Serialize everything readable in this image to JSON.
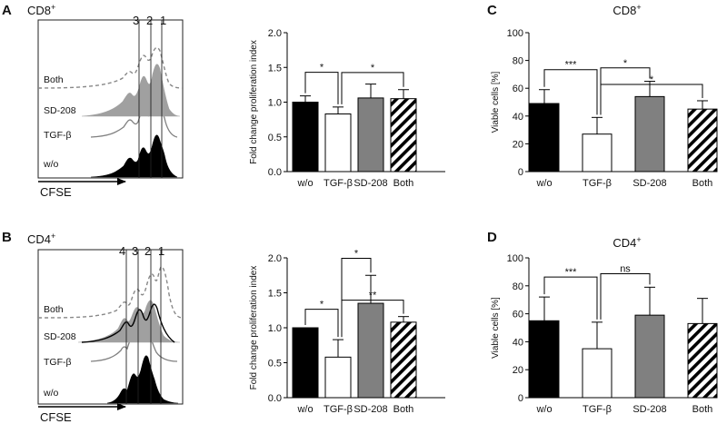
{
  "colors": {
    "black": "#000000",
    "white": "#ffffff",
    "gray": "#808080",
    "hist_gray": "#a0a0a0",
    "line_gray": "#888888"
  },
  "panels": {
    "A": {
      "label": "A",
      "title": "CD8",
      "title_sup": "+",
      "peak_labels": [
        "3",
        "2",
        "1"
      ],
      "row_labels": [
        "Both",
        "SD-208",
        "TGF-β",
        "w/o"
      ],
      "axis_label": "CFSE"
    },
    "B": {
      "label": "B",
      "title": "CD4",
      "title_sup": "+",
      "peak_labels": [
        "4",
        "3",
        "2",
        "1"
      ],
      "row_labels": [
        "Both",
        "SD-208",
        "TGF-β",
        "w/o"
      ],
      "axis_label": "CFSE"
    },
    "C": {
      "label": "C",
      "title": "CD8",
      "title_sup": "+"
    },
    "D": {
      "label": "D",
      "title": "CD4",
      "title_sup": "+"
    }
  },
  "chart_data": [
    {
      "id": "A-bar",
      "type": "bar",
      "title": "",
      "ylabel": "Fold change proliferation index",
      "categories": [
        "w/o",
        "TGF-β",
        "SD-208",
        "Both"
      ],
      "values": [
        1.0,
        0.83,
        1.06,
        1.05
      ],
      "errors": [
        0.09,
        0.1,
        0.2,
        0.13
      ],
      "styles": [
        "black",
        "white",
        "gray",
        "hatch"
      ],
      "ylim": [
        0,
        2.0
      ],
      "yticks": [
        "0.0",
        "0.5",
        "1.0",
        "1.5",
        "2.0"
      ],
      "significance": [
        {
          "from": 0,
          "to": 1,
          "label": "*"
        },
        {
          "from": 1,
          "to": 3,
          "label": "*"
        }
      ]
    },
    {
      "id": "B-bar",
      "type": "bar",
      "title": "",
      "ylabel": "Fold change proliferation index",
      "categories": [
        "w/o",
        "TGF-β",
        "SD-208",
        "Both"
      ],
      "values": [
        1.0,
        0.58,
        1.35,
        1.08
      ],
      "errors": [
        0.0,
        0.25,
        0.4,
        0.08
      ],
      "styles": [
        "black",
        "white",
        "gray",
        "hatch"
      ],
      "ylim": [
        0,
        2.0
      ],
      "yticks": [
        "0.0",
        "0.5",
        "1.0",
        "1.5",
        "2.0"
      ],
      "significance": [
        {
          "from": 0,
          "to": 1,
          "label": "*"
        },
        {
          "from": 1,
          "to": 2,
          "label": "*"
        },
        {
          "from": 1,
          "to": 3,
          "label": "**"
        }
      ]
    },
    {
      "id": "C-bar",
      "type": "bar",
      "title": "CD8+",
      "ylabel": "Viable cells [%]",
      "categories": [
        "w/o",
        "TGF-β",
        "SD-208",
        "Both"
      ],
      "values": [
        49,
        27,
        54,
        45
      ],
      "errors": [
        10,
        12,
        11,
        6
      ],
      "styles": [
        "black",
        "white",
        "gray",
        "hatch"
      ],
      "ylim": [
        0,
        100
      ],
      "yticks": [
        "0",
        "20",
        "40",
        "60",
        "80",
        "100"
      ],
      "significance": [
        {
          "from": 0,
          "to": 1,
          "label": "***"
        },
        {
          "from": 1,
          "to": 2,
          "label": "*"
        },
        {
          "from": 1,
          "to": 3,
          "label": "*"
        }
      ]
    },
    {
      "id": "D-bar",
      "type": "bar",
      "title": "CD4+",
      "ylabel": "Viable cells [%]",
      "categories": [
        "w/o",
        "TGF-β",
        "SD-208",
        "Both"
      ],
      "values": [
        55,
        35,
        59,
        53
      ],
      "errors": [
        17,
        19,
        20,
        18
      ],
      "styles": [
        "black",
        "white",
        "gray",
        "hatch"
      ],
      "ylim": [
        0,
        100
      ],
      "yticks": [
        "0",
        "20",
        "40",
        "60",
        "80",
        "100"
      ],
      "significance": [
        {
          "from": 0,
          "to": 1,
          "label": "***"
        },
        {
          "from": 1,
          "to": 2,
          "label": "ns"
        }
      ]
    }
  ]
}
